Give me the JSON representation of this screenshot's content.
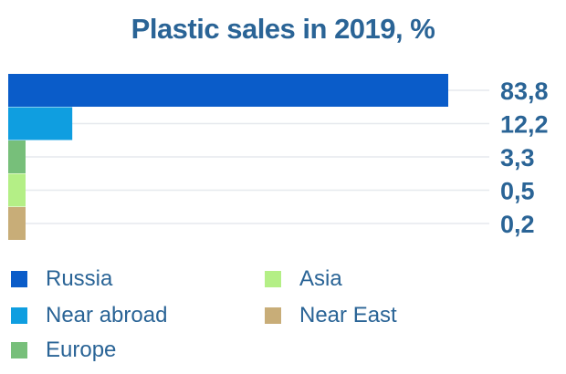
{
  "chart_data": {
    "type": "bar",
    "orientation": "horizontal",
    "title": "Plastic sales in 2019, %",
    "categories": [
      "Russia",
      "Near abroad",
      "Europe",
      "Asia",
      "Near East"
    ],
    "values": [
      83.8,
      12.2,
      3.3,
      0.5,
      0.2
    ],
    "value_labels": [
      "83,8",
      "12,2",
      "3,3",
      "0,5",
      "0,2"
    ],
    "colors": [
      "#0a5cc9",
      "#0f9ee0",
      "#77bf7a",
      "#b4ef86",
      "#c8ad78"
    ],
    "xlim": [
      0,
      83.8
    ],
    "grid": true,
    "legend": "bottom"
  },
  "legend": {
    "items": [
      {
        "label": "Russia",
        "color": "#0a5cc9"
      },
      {
        "label": "Near abroad",
        "color": "#0f9ee0"
      },
      {
        "label": "Europe",
        "color": "#77bf7a"
      },
      {
        "label": "Asia",
        "color": "#b4ef86"
      },
      {
        "label": "Near East",
        "color": "#c8ad78"
      }
    ]
  },
  "colors": {
    "text": "#2a6496",
    "grid": "#e6e9ee"
  }
}
